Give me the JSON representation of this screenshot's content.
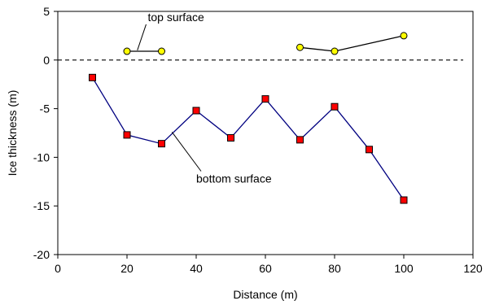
{
  "chart_data": {
    "type": "line",
    "xlabel": "Distance (m)",
    "ylabel": "Ice thickness (m)",
    "xlim": [
      0,
      120
    ],
    "ylim": [
      -20,
      5
    ],
    "xticks": [
      0,
      20,
      40,
      60,
      80,
      100,
      120
    ],
    "yticks": [
      5,
      0,
      -5,
      -10,
      -15,
      -20
    ],
    "grid": false,
    "legend": "none",
    "reference_line": {
      "y": 0,
      "style": "dashed"
    },
    "series": [
      {
        "segments": [
          {
            "x": [
              20,
              30
            ],
            "y": [
              0.9,
              0.9
            ]
          },
          {
            "x": [
              70,
              80,
              100
            ],
            "y": [
              1.3,
              0.9,
              2.5
            ]
          }
        ],
        "marker": "circle",
        "marker_color": "#ffff00",
        "line_color": "#000000"
      },
      {
        "segments": [
          {
            "x": [
              10,
              20,
              30,
              40,
              50,
              60,
              70,
              80,
              90,
              100
            ],
            "y": [
              -1.8,
              -7.7,
              -8.6,
              -5.2,
              -8.0,
              -4.0,
              -8.2,
              -4.8,
              -9.2,
              -14.4
            ]
          }
        ],
        "marker": "square",
        "marker_color": "#ff0000",
        "line_color": "#000080"
      }
    ],
    "annotations": [
      {
        "text": "top surface",
        "x": 26,
        "y": 4.0,
        "pointer_to": [
          23,
          1.0
        ]
      },
      {
        "text": "bottom surface",
        "x": 40,
        "y": -12.6,
        "pointer_to": [
          33,
          -7.4
        ]
      }
    ]
  }
}
